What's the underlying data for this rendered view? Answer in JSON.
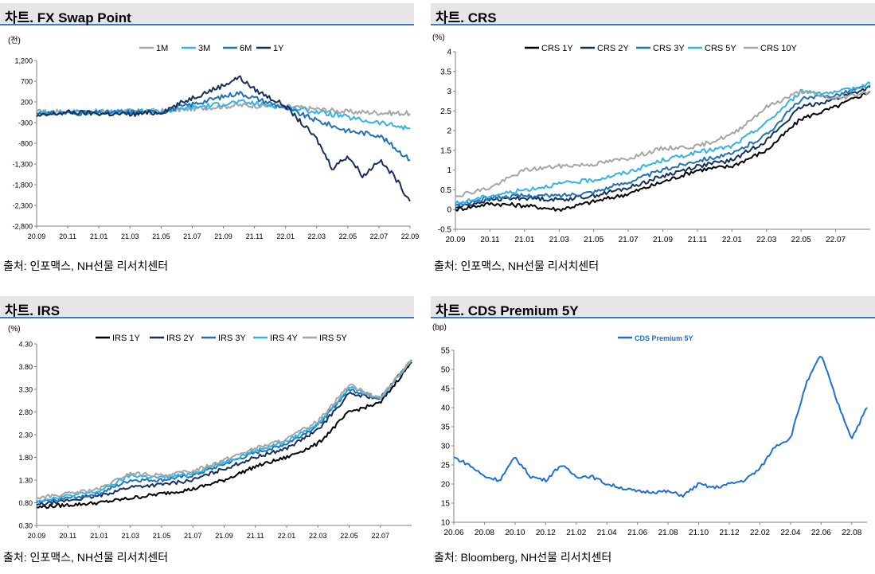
{
  "charts": [
    {
      "title": "차트. FX Swap Point",
      "source": "출처: 인포맥스, NH선물 리서치센터",
      "unit": "(전)",
      "chart_data": {
        "type": "line",
        "title": "차트. FX Swap Point",
        "ylabel": "(전)",
        "ylim": [
          -2800,
          1200
        ],
        "yticks": [
          1200,
          700,
          200,
          -300,
          -800,
          -1300,
          -1800,
          -2300,
          -2800
        ],
        "ytick_labels": [
          "1,200",
          "700",
          "200",
          "-300",
          "-800",
          "-1,300",
          "-1,800",
          "-2,300",
          "-2,800"
        ],
        "xrange": [
          "20.09",
          "22.09"
        ],
        "xticks": [
          "20.09",
          "20.11",
          "21.01",
          "21.03",
          "21.05",
          "21.07",
          "21.09",
          "21.11",
          "22.01",
          "22.03",
          "22.05",
          "22.07",
          "22.09"
        ],
        "legend_position": "top",
        "series": [
          {
            "name": "1M",
            "color": "#a6a6a6",
            "x": [
              "20.09",
              "21.05",
              "21.10",
              "22.01",
              "22.05",
              "22.09"
            ],
            "y": [
              -40,
              -20,
              120,
              90,
              -40,
              -80
            ]
          },
          {
            "name": "3M",
            "color": "#33b4e6",
            "x": [
              "20.09",
              "21.05",
              "21.10",
              "22.01",
              "22.04",
              "22.06",
              "22.07",
              "22.09"
            ],
            "y": [
              -60,
              -30,
              200,
              80,
              -100,
              -250,
              -300,
              -450
            ]
          },
          {
            "name": "6M",
            "color": "#1f72b8",
            "x": [
              "20.09",
              "21.05",
              "21.10",
              "22.01",
              "22.03",
              "22.05",
              "22.07",
              "22.09"
            ],
            "y": [
              -80,
              -40,
              420,
              50,
              -250,
              -500,
              -600,
              -1200
            ]
          },
          {
            "name": "1Y",
            "color": "#16305e",
            "x": [
              "20.09",
              "20.11",
              "21.01",
              "21.03",
              "21.05",
              "21.07",
              "21.09",
              "21.10",
              "21.11",
              "22.01",
              "22.03",
              "22.04",
              "22.05",
              "22.06",
              "22.07",
              "22.08",
              "22.09"
            ],
            "y": [
              -150,
              -50,
              -80,
              -100,
              -50,
              300,
              600,
              800,
              500,
              100,
              -700,
              -1400,
              -1100,
              -1600,
              -1200,
              -1600,
              -2200
            ]
          }
        ]
      }
    },
    {
      "title": "차트. CRS",
      "source": "출처: 인포맥스, NH선물 리서치센터",
      "unit": "(%)",
      "chart_data": {
        "type": "line",
        "title": "차트. CRS",
        "ylabel": "(%)",
        "ylim": [
          -0.5,
          4
        ],
        "yticks": [
          4,
          3.5,
          3,
          2.5,
          2,
          1.5,
          1,
          0.5,
          0,
          -0.5
        ],
        "ytick_labels": [
          "4",
          "3.5",
          "3",
          "2.5",
          "2",
          "1.5",
          "1",
          "0.5",
          "0",
          "-0.5"
        ],
        "xrange": [
          "20.09",
          "22.09"
        ],
        "xticks": [
          "20.09",
          "20.11",
          "21.01",
          "21.03",
          "21.05",
          "21.07",
          "21.09",
          "21.11",
          "22.01",
          "22.03",
          "22.05",
          "22.07"
        ],
        "legend_position": "top",
        "series": [
          {
            "name": "CRS 1Y",
            "color": "#000000",
            "x": [
              "20.09",
              "20.11",
              "21.01",
              "21.03",
              "21.05",
              "21.07",
              "21.09",
              "21.11",
              "22.01",
              "22.03",
              "22.05",
              "22.07",
              "22.09"
            ],
            "y": [
              0.0,
              0.15,
              0.1,
              0.0,
              0.2,
              0.4,
              0.7,
              1.0,
              1.1,
              1.5,
              2.3,
              2.6,
              3.0
            ]
          },
          {
            "name": "CRS 2Y",
            "color": "#16305e",
            "x": [
              "20.09",
              "20.11",
              "21.01",
              "21.03",
              "21.05",
              "21.07",
              "21.09",
              "21.11",
              "22.01",
              "22.03",
              "22.05",
              "22.07",
              "22.09"
            ],
            "y": [
              0.05,
              0.25,
              0.3,
              0.25,
              0.35,
              0.55,
              0.85,
              1.1,
              1.25,
              1.75,
              2.6,
              2.8,
              3.1
            ]
          },
          {
            "name": "CRS 3Y",
            "color": "#1f72b8",
            "x": [
              "20.09",
              "20.11",
              "21.01",
              "21.03",
              "21.05",
              "21.07",
              "21.09",
              "21.11",
              "22.01",
              "22.03",
              "22.05",
              "22.07",
              "22.09"
            ],
            "y": [
              0.1,
              0.3,
              0.35,
              0.35,
              0.45,
              0.7,
              1.0,
              1.25,
              1.4,
              1.9,
              2.8,
              2.9,
              3.15
            ]
          },
          {
            "name": "CRS 5Y",
            "color": "#33b4e6",
            "x": [
              "20.09",
              "20.11",
              "21.01",
              "21.03",
              "21.05",
              "21.07",
              "21.09",
              "21.11",
              "22.01",
              "22.03",
              "22.05",
              "22.07",
              "22.09"
            ],
            "y": [
              0.15,
              0.35,
              0.5,
              0.65,
              0.75,
              0.95,
              1.25,
              1.45,
              1.6,
              2.2,
              3.0,
              2.95,
              3.2
            ]
          },
          {
            "name": "CRS 10Y",
            "color": "#a6a6a6",
            "x": [
              "20.09",
              "20.11",
              "21.01",
              "21.03",
              "21.05",
              "21.07",
              "21.09",
              "21.11",
              "22.01",
              "22.03",
              "22.05",
              "22.07",
              "22.09"
            ],
            "y": [
              0.35,
              0.55,
              1.0,
              1.1,
              1.15,
              1.3,
              1.55,
              1.6,
              1.9,
              2.6,
              3.0,
              2.8,
              3.0
            ]
          }
        ]
      }
    },
    {
      "title": "차트. IRS",
      "source": "출처: 인포맥스, NH선물 리서치센터",
      "unit": "(%)",
      "chart_data": {
        "type": "line",
        "title": "차트. IRS",
        "ylabel": "(%)",
        "ylim": [
          0.3,
          4.3
        ],
        "yticks": [
          4.3,
          3.8,
          3.3,
          2.8,
          2.3,
          1.8,
          1.3,
          0.8,
          0.3
        ],
        "ytick_labels": [
          "4.30",
          "3.80",
          "3.30",
          "2.80",
          "2.30",
          "1.80",
          "1.30",
          "0.80",
          "0.30"
        ],
        "xrange": [
          "20.09",
          "22.09"
        ],
        "xticks": [
          "20.09",
          "20.11",
          "21.01",
          "21.03",
          "21.05",
          "21.07",
          "21.09",
          "21.11",
          "22.01",
          "22.03",
          "22.05",
          "22.07"
        ],
        "legend_position": "top",
        "series": [
          {
            "name": "IRS 1Y",
            "color": "#000000",
            "x": [
              "20.09",
              "20.11",
              "21.01",
              "21.03",
              "21.05",
              "21.07",
              "21.09",
              "21.11",
              "22.01",
              "22.03",
              "22.05",
              "22.07",
              "22.09"
            ],
            "y": [
              0.7,
              0.75,
              0.8,
              0.9,
              1.0,
              1.1,
              1.3,
              1.6,
              1.8,
              2.1,
              2.8,
              3.0,
              3.9
            ]
          },
          {
            "name": "IRS 2Y",
            "color": "#16305e",
            "x": [
              "20.09",
              "20.11",
              "21.01",
              "21.03",
              "21.05",
              "21.07",
              "21.09",
              "21.11",
              "22.01",
              "22.03",
              "22.05",
              "22.07",
              "22.09"
            ],
            "y": [
              0.75,
              0.85,
              0.95,
              1.15,
              1.2,
              1.3,
              1.55,
              1.8,
              2.0,
              2.4,
              3.2,
              3.1,
              3.95
            ]
          },
          {
            "name": "IRS 3Y",
            "color": "#1f72b8",
            "x": [
              "20.09",
              "20.11",
              "21.01",
              "21.03",
              "21.05",
              "21.07",
              "21.09",
              "21.11",
              "22.01",
              "22.03",
              "22.05",
              "22.07",
              "22.09"
            ],
            "y": [
              0.8,
              0.9,
              1.0,
              1.3,
              1.3,
              1.4,
              1.65,
              1.9,
              2.1,
              2.5,
              3.3,
              3.1,
              3.95
            ]
          },
          {
            "name": "IRS 4Y",
            "color": "#33b4e6",
            "x": [
              "20.09",
              "20.11",
              "21.01",
              "21.03",
              "21.05",
              "21.07",
              "21.09",
              "21.11",
              "22.01",
              "22.03",
              "22.05",
              "22.07",
              "22.09"
            ],
            "y": [
              0.85,
              0.95,
              1.05,
              1.4,
              1.35,
              1.45,
              1.7,
              1.95,
              2.15,
              2.55,
              3.35,
              3.1,
              3.95
            ]
          },
          {
            "name": "IRS 5Y",
            "color": "#a6a6a6",
            "x": [
              "20.09",
              "20.11",
              "21.01",
              "21.03",
              "21.05",
              "21.07",
              "21.09",
              "21.11",
              "22.01",
              "22.03",
              "22.05",
              "22.07",
              "22.09"
            ],
            "y": [
              0.9,
              1.0,
              1.1,
              1.45,
              1.4,
              1.5,
              1.75,
              2.0,
              2.2,
              2.6,
              3.4,
              3.1,
              3.95
            ]
          }
        ]
      }
    },
    {
      "title": "차트. CDS Premium 5Y",
      "source": "출처: Bloomberg, NH선물 리서치센터",
      "unit": "(bp)",
      "chart_data": {
        "type": "line",
        "title": "차트. CDS Premium 5Y",
        "ylabel": "(bp)",
        "ylim": [
          10,
          55
        ],
        "yticks": [
          55,
          50,
          45,
          40,
          35,
          30,
          25,
          20,
          15,
          10
        ],
        "ytick_labels": [
          "55",
          "50",
          "45",
          "40",
          "35",
          "30",
          "25",
          "20",
          "15",
          "10"
        ],
        "xrange": [
          "20.06",
          "22.09"
        ],
        "xticks": [
          "20.06",
          "20.08",
          "20.10",
          "20.12",
          "21.02",
          "21.04",
          "21.06",
          "21.08",
          "21.10",
          "21.12",
          "22.02",
          "22.04",
          "22.06",
          "22.08"
        ],
        "legend_position": "top",
        "series": [
          {
            "name": "CDS Premium 5Y",
            "color": "#1f6fd6",
            "x": [
              "20.06",
              "20.07",
              "20.08",
              "20.09",
              "20.10",
              "20.11",
              "20.12",
              "21.01",
              "21.02",
              "21.03",
              "21.04",
              "21.05",
              "21.06",
              "21.07",
              "21.08",
              "21.09",
              "21.10",
              "21.11",
              "21.12",
              "22.01",
              "22.02",
              "22.03",
              "22.04",
              "22.05",
              "22.06",
              "22.07",
              "22.08",
              "22.09"
            ],
            "y": [
              27,
              25,
              22,
              21,
              27,
              22,
              21,
              25,
              22,
              22,
              20,
              19,
              18,
              18,
              18,
              17,
              20,
              19,
              20,
              21,
              24,
              30,
              32,
              46,
              54,
              42,
              32,
              40
            ]
          }
        ]
      }
    }
  ]
}
